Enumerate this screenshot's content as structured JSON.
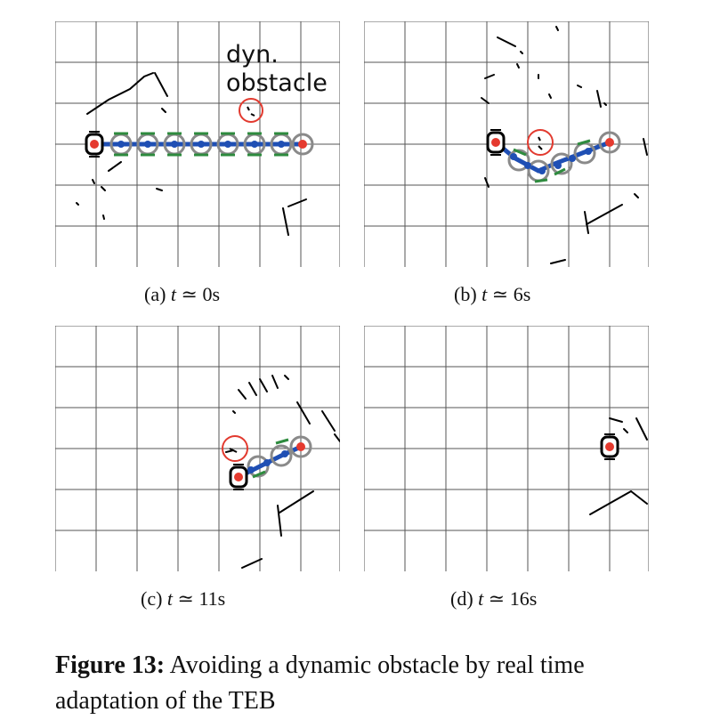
{
  "panels": [
    {
      "id": "a",
      "label": "(a)",
      "time_symbol": "t",
      "approx": "≃",
      "value": "0",
      "unit": "s"
    },
    {
      "id": "b",
      "label": "(b)",
      "time_symbol": "t",
      "approx": "≃",
      "value": "6",
      "unit": "s"
    },
    {
      "id": "c",
      "label": "(c)",
      "time_symbol": "t",
      "approx": "≃",
      "value": "11",
      "unit": "s"
    },
    {
      "id": "d",
      "label": "(d)",
      "time_symbol": "t",
      "approx": "≃",
      "value": "16",
      "unit": "s"
    }
  ],
  "annotation": {
    "line1": "dyn.",
    "line2": "obstacle"
  },
  "caption": {
    "label": "Figure 13:",
    "text": "Avoiding a dynamic obstacle by real time adaptation of the TEB"
  },
  "colors": {
    "grid": "#555555",
    "trajectory": "#1f4fb4",
    "pose_ring": "#8a8a8a",
    "velocity": "#2e8b3e",
    "robot_center": "#e53a2f",
    "obstacle_circle": "#e23a2f",
    "scan": "#000000"
  }
}
